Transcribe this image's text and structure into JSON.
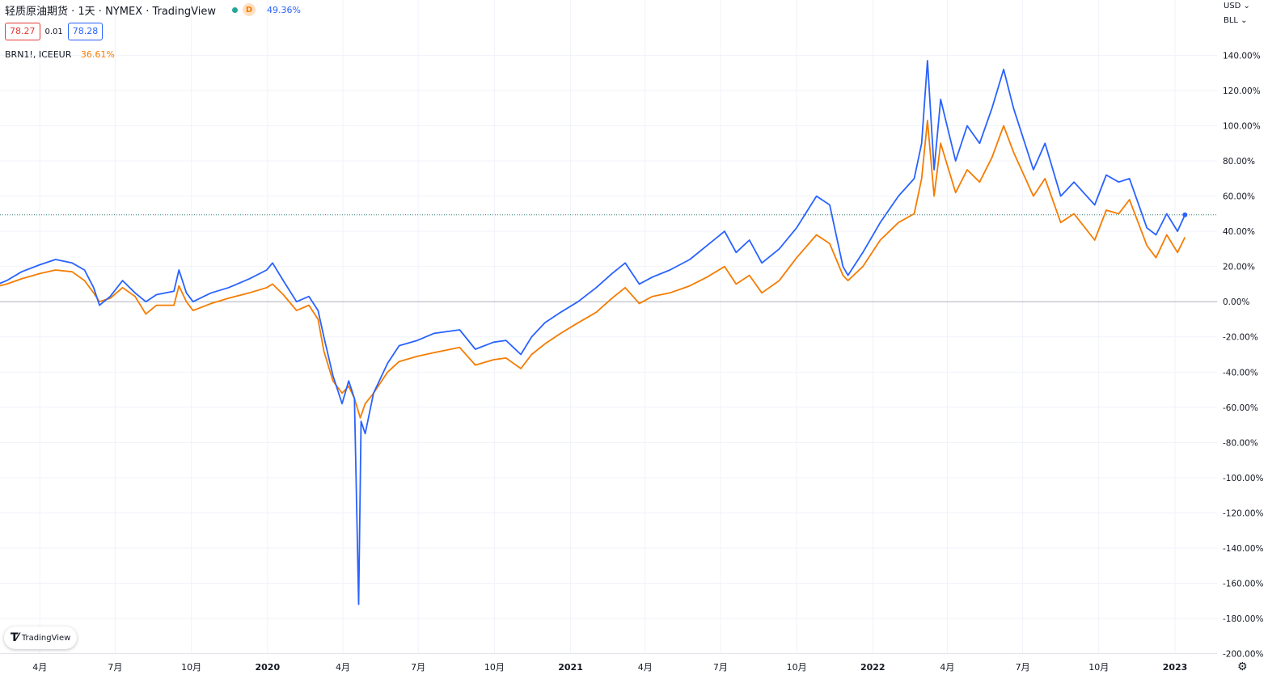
{
  "header": {
    "title": "轻质原油期货 · 1天 · NYMEX · TradingView",
    "interval_badge": "D",
    "change_pct": "49.36%",
    "bid": "78.27",
    "spread": "0.01",
    "ask": "78.28"
  },
  "compare_series": {
    "label": "BRN1!, ICEEUR",
    "change_pct": "36.61%"
  },
  "scale": {
    "currency": "USD ⌄",
    "unit": "BLL ⌄"
  },
  "branding": {
    "name": "TradingView"
  },
  "icons": {
    "settings": "gear-icon"
  },
  "colors": {
    "primary": "#2962ff",
    "compare": "#f57c00",
    "grid": "#f0f3fa",
    "zero": "#b2b5be",
    "last": "#2e7d72"
  },
  "chart_data": {
    "type": "line",
    "y_unit": "%",
    "ylim": [
      -200,
      140
    ],
    "ytick_labels": [
      "140.00%",
      "120.00%",
      "100.00%",
      "80.00%",
      "60.00%",
      "40.00%",
      "20.00%",
      "0.00%",
      "-20.00%",
      "-40.00%",
      "-60.00%",
      "-80.00%",
      "-100.00%",
      "-120.00%",
      "-140.00%",
      "-160.00%",
      "-180.00%",
      "-200.00%"
    ],
    "ytick_values": [
      140,
      120,
      100,
      80,
      60,
      40,
      20,
      0,
      -20,
      -40,
      -60,
      -80,
      -100,
      -120,
      -140,
      -160,
      -180,
      -200
    ],
    "xticks": [
      {
        "label": "4月",
        "date": "2019-04-01"
      },
      {
        "label": "7月",
        "date": "2019-07-01"
      },
      {
        "label": "10月",
        "date": "2019-10-01"
      },
      {
        "label": "2020",
        "date": "2020-01-01",
        "bold": true
      },
      {
        "label": "4月",
        "date": "2020-04-01"
      },
      {
        "label": "7月",
        "date": "2020-07-01"
      },
      {
        "label": "10月",
        "date": "2020-10-01"
      },
      {
        "label": "2021",
        "date": "2021-01-01",
        "bold": true
      },
      {
        "label": "4月",
        "date": "2021-04-01"
      },
      {
        "label": "7月",
        "date": "2021-07-01"
      },
      {
        "label": "10月",
        "date": "2021-10-01"
      },
      {
        "label": "2022",
        "date": "2022-01-01",
        "bold": true
      },
      {
        "label": "4月",
        "date": "2022-04-01"
      },
      {
        "label": "7月",
        "date": "2022-07-01"
      },
      {
        "label": "10月",
        "date": "2022-10-01"
      },
      {
        "label": "2023",
        "date": "2023-01-01",
        "bold": true
      }
    ],
    "grid": true,
    "last_value_line": 49.36,
    "series": [
      {
        "name": "轻质原油期货",
        "color": "#2962ff",
        "points": [
          [
            "2019-01-02",
            4
          ],
          [
            "2019-01-25",
            7
          ],
          [
            "2019-02-20",
            12
          ],
          [
            "2019-03-10",
            17
          ],
          [
            "2019-04-01",
            21
          ],
          [
            "2019-04-20",
            24
          ],
          [
            "2019-05-10",
            22
          ],
          [
            "2019-05-25",
            18
          ],
          [
            "2019-06-05",
            8
          ],
          [
            "2019-06-12",
            -2
          ],
          [
            "2019-06-25",
            3
          ],
          [
            "2019-07-10",
            12
          ],
          [
            "2019-07-25",
            5
          ],
          [
            "2019-08-07",
            0
          ],
          [
            "2019-08-20",
            4
          ],
          [
            "2019-09-10",
            6
          ],
          [
            "2019-09-16",
            18
          ],
          [
            "2019-09-25",
            5
          ],
          [
            "2019-10-03",
            0
          ],
          [
            "2019-10-25",
            5
          ],
          [
            "2019-11-15",
            8
          ],
          [
            "2019-12-10",
            13
          ],
          [
            "2019-12-31",
            18
          ],
          [
            "2020-01-07",
            22
          ],
          [
            "2020-01-20",
            12
          ],
          [
            "2020-02-05",
            0
          ],
          [
            "2020-02-20",
            3
          ],
          [
            "2020-03-02",
            -5
          ],
          [
            "2020-03-09",
            -20
          ],
          [
            "2020-03-20",
            -42
          ],
          [
            "2020-03-31",
            -58
          ],
          [
            "2020-04-08",
            -45
          ],
          [
            "2020-04-15",
            -55
          ],
          [
            "2020-04-20",
            -172
          ],
          [
            "2020-04-23",
            -68
          ],
          [
            "2020-04-28",
            -75
          ],
          [
            "2020-05-08",
            -52
          ],
          [
            "2020-05-25",
            -35
          ],
          [
            "2020-06-08",
            -25
          ],
          [
            "2020-06-30",
            -22
          ],
          [
            "2020-07-20",
            -18
          ],
          [
            "2020-08-20",
            -16
          ],
          [
            "2020-09-08",
            -27
          ],
          [
            "2020-09-30",
            -23
          ],
          [
            "2020-10-15",
            -22
          ],
          [
            "2020-11-02",
            -30
          ],
          [
            "2020-11-15",
            -20
          ],
          [
            "2020-12-01",
            -12
          ],
          [
            "2020-12-20",
            -6
          ],
          [
            "2021-01-10",
            0
          ],
          [
            "2021-02-01",
            8
          ],
          [
            "2021-02-20",
            16
          ],
          [
            "2021-03-08",
            22
          ],
          [
            "2021-03-25",
            10
          ],
          [
            "2021-04-10",
            14
          ],
          [
            "2021-05-01",
            18
          ],
          [
            "2021-05-25",
            24
          ],
          [
            "2021-06-15",
            32
          ],
          [
            "2021-07-06",
            40
          ],
          [
            "2021-07-20",
            28
          ],
          [
            "2021-08-05",
            35
          ],
          [
            "2021-08-20",
            22
          ],
          [
            "2021-09-10",
            30
          ],
          [
            "2021-10-01",
            42
          ],
          [
            "2021-10-25",
            60
          ],
          [
            "2021-11-10",
            55
          ],
          [
            "2021-11-26",
            20
          ],
          [
            "2021-12-02",
            15
          ],
          [
            "2021-12-20",
            28
          ],
          [
            "2022-01-10",
            45
          ],
          [
            "2022-02-01",
            60
          ],
          [
            "2022-02-20",
            70
          ],
          [
            "2022-03-01",
            90
          ],
          [
            "2022-03-08",
            137
          ],
          [
            "2022-03-16",
            75
          ],
          [
            "2022-03-24",
            115
          ],
          [
            "2022-04-11",
            80
          ],
          [
            "2022-04-25",
            100
          ],
          [
            "2022-05-10",
            90
          ],
          [
            "2022-05-25",
            110
          ],
          [
            "2022-06-08",
            132
          ],
          [
            "2022-06-20",
            110
          ],
          [
            "2022-07-14",
            75
          ],
          [
            "2022-07-28",
            90
          ],
          [
            "2022-08-16",
            60
          ],
          [
            "2022-09-01",
            68
          ],
          [
            "2022-09-26",
            55
          ],
          [
            "2022-10-10",
            72
          ],
          [
            "2022-10-25",
            68
          ],
          [
            "2022-11-07",
            70
          ],
          [
            "2022-11-28",
            42
          ],
          [
            "2022-12-09",
            38
          ],
          [
            "2022-12-22",
            50
          ],
          [
            "2023-01-04",
            40
          ],
          [
            "2023-01-13",
            49.36
          ]
        ]
      },
      {
        "name": "BRN1!, ICEEUR",
        "color": "#f57c00",
        "points": [
          [
            "2019-01-02",
            5
          ],
          [
            "2019-01-25",
            7
          ],
          [
            "2019-02-20",
            10
          ],
          [
            "2019-03-10",
            13
          ],
          [
            "2019-04-01",
            16
          ],
          [
            "2019-04-20",
            18
          ],
          [
            "2019-05-10",
            17
          ],
          [
            "2019-05-25",
            12
          ],
          [
            "2019-06-05",
            5
          ],
          [
            "2019-06-12",
            0
          ],
          [
            "2019-06-25",
            2
          ],
          [
            "2019-07-10",
            8
          ],
          [
            "2019-07-25",
            3
          ],
          [
            "2019-08-07",
            -7
          ],
          [
            "2019-08-20",
            -2
          ],
          [
            "2019-09-10",
            -2
          ],
          [
            "2019-09-16",
            9
          ],
          [
            "2019-09-25",
            0
          ],
          [
            "2019-10-03",
            -5
          ],
          [
            "2019-10-25",
            -1
          ],
          [
            "2019-11-15",
            2
          ],
          [
            "2019-12-10",
            5
          ],
          [
            "2019-12-31",
            8
          ],
          [
            "2020-01-07",
            10
          ],
          [
            "2020-01-20",
            4
          ],
          [
            "2020-02-05",
            -5
          ],
          [
            "2020-02-20",
            -2
          ],
          [
            "2020-03-02",
            -10
          ],
          [
            "2020-03-09",
            -28
          ],
          [
            "2020-03-20",
            -45
          ],
          [
            "2020-03-31",
            -52
          ],
          [
            "2020-04-08",
            -48
          ],
          [
            "2020-04-15",
            -55
          ],
          [
            "2020-04-22",
            -66
          ],
          [
            "2020-04-28",
            -58
          ],
          [
            "2020-05-08",
            -52
          ],
          [
            "2020-05-25",
            -40
          ],
          [
            "2020-06-08",
            -34
          ],
          [
            "2020-06-30",
            -31
          ],
          [
            "2020-07-20",
            -29
          ],
          [
            "2020-08-20",
            -26
          ],
          [
            "2020-09-08",
            -36
          ],
          [
            "2020-09-30",
            -33
          ],
          [
            "2020-10-15",
            -32
          ],
          [
            "2020-11-02",
            -38
          ],
          [
            "2020-11-15",
            -30
          ],
          [
            "2020-12-01",
            -24
          ],
          [
            "2020-12-20",
            -18
          ],
          [
            "2021-01-10",
            -12
          ],
          [
            "2021-02-01",
            -6
          ],
          [
            "2021-02-20",
            2
          ],
          [
            "2021-03-08",
            8
          ],
          [
            "2021-03-25",
            -1
          ],
          [
            "2021-04-10",
            3
          ],
          [
            "2021-05-01",
            5
          ],
          [
            "2021-05-25",
            9
          ],
          [
            "2021-06-15",
            14
          ],
          [
            "2021-07-06",
            20
          ],
          [
            "2021-07-20",
            10
          ],
          [
            "2021-08-05",
            15
          ],
          [
            "2021-08-20",
            5
          ],
          [
            "2021-09-10",
            12
          ],
          [
            "2021-10-01",
            25
          ],
          [
            "2021-10-25",
            38
          ],
          [
            "2021-11-10",
            33
          ],
          [
            "2021-11-26",
            15
          ],
          [
            "2021-12-02",
            12
          ],
          [
            "2021-12-20",
            20
          ],
          [
            "2022-01-10",
            35
          ],
          [
            "2022-02-01",
            45
          ],
          [
            "2022-02-20",
            50
          ],
          [
            "2022-03-01",
            70
          ],
          [
            "2022-03-08",
            103
          ],
          [
            "2022-03-16",
            60
          ],
          [
            "2022-03-24",
            90
          ],
          [
            "2022-04-11",
            62
          ],
          [
            "2022-04-25",
            75
          ],
          [
            "2022-05-10",
            68
          ],
          [
            "2022-05-25",
            82
          ],
          [
            "2022-06-08",
            100
          ],
          [
            "2022-06-20",
            85
          ],
          [
            "2022-07-14",
            60
          ],
          [
            "2022-07-28",
            70
          ],
          [
            "2022-08-16",
            45
          ],
          [
            "2022-09-01",
            50
          ],
          [
            "2022-09-26",
            35
          ],
          [
            "2022-10-10",
            52
          ],
          [
            "2022-10-25",
            50
          ],
          [
            "2022-11-07",
            58
          ],
          [
            "2022-11-28",
            32
          ],
          [
            "2022-12-09",
            25
          ],
          [
            "2022-12-22",
            38
          ],
          [
            "2023-01-04",
            28
          ],
          [
            "2023-01-13",
            36.61
          ]
        ]
      }
    ]
  }
}
